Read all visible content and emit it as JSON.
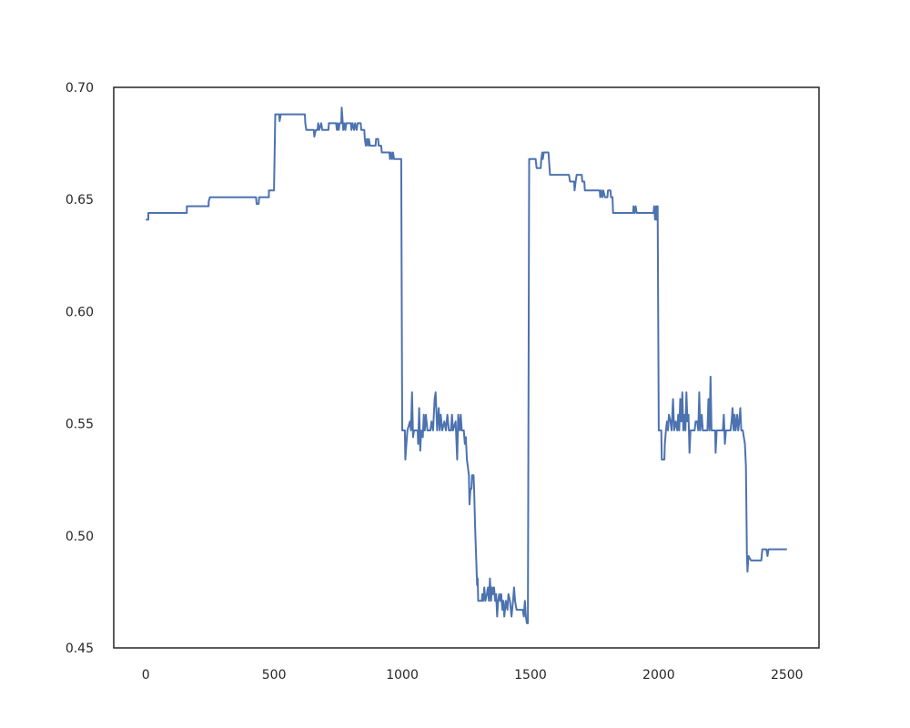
{
  "chart_data": {
    "type": "line",
    "title": "",
    "xlabel": "",
    "ylabel": "",
    "xlim": [
      -125,
      2625
    ],
    "ylim": [
      0.45,
      0.7
    ],
    "x_ticks": [
      0,
      500,
      1000,
      1500,
      2000,
      2500
    ],
    "y_ticks": [
      0.45,
      0.5,
      0.55,
      0.6,
      0.65,
      0.7
    ],
    "x_tick_labels": [
      "0",
      "500",
      "1000",
      "1500",
      "2000",
      "2500"
    ],
    "y_tick_labels": [
      "0.45",
      "0.50",
      "0.55",
      "0.60",
      "0.65",
      "0.70"
    ],
    "grid": false,
    "colors": {
      "line": "#4c72b0",
      "axes": "#262626"
    },
    "series": [
      {
        "points": [
          [
            0,
            0.641
          ],
          [
            10,
            0.641
          ],
          [
            10,
            0.644
          ],
          [
            160,
            0.644
          ],
          [
            160,
            0.647
          ],
          [
            245,
            0.647
          ],
          [
            245,
            0.649
          ],
          [
            250,
            0.651
          ],
          [
            430,
            0.651
          ],
          [
            432,
            0.648
          ],
          [
            440,
            0.648
          ],
          [
            442,
            0.651
          ],
          [
            480,
            0.651
          ],
          [
            480,
            0.654
          ],
          [
            500,
            0.654
          ],
          [
            505,
            0.688
          ],
          [
            520,
            0.688
          ],
          [
            522,
            0.685
          ],
          [
            526,
            0.688
          ],
          [
            620,
            0.688
          ],
          [
            622,
            0.684
          ],
          [
            626,
            0.681
          ],
          [
            655,
            0.681
          ],
          [
            657,
            0.678
          ],
          [
            663,
            0.681
          ],
          [
            670,
            0.681
          ],
          [
            672,
            0.684
          ],
          [
            676,
            0.681
          ],
          [
            684,
            0.684
          ],
          [
            688,
            0.681
          ],
          [
            712,
            0.681
          ],
          [
            714,
            0.684
          ],
          [
            742,
            0.684
          ],
          [
            745,
            0.681
          ],
          [
            748,
            0.684
          ],
          [
            752,
            0.681
          ],
          [
            756,
            0.684
          ],
          [
            762,
            0.684
          ],
          [
            764,
            0.691
          ],
          [
            768,
            0.684
          ],
          [
            770,
            0.681
          ],
          [
            774,
            0.684
          ],
          [
            778,
            0.681
          ],
          [
            782,
            0.684
          ],
          [
            800,
            0.684
          ],
          [
            802,
            0.681
          ],
          [
            806,
            0.684
          ],
          [
            812,
            0.681
          ],
          [
            816,
            0.684
          ],
          [
            822,
            0.681
          ],
          [
            826,
            0.684
          ],
          [
            838,
            0.684
          ],
          [
            840,
            0.681
          ],
          [
            852,
            0.681
          ],
          [
            854,
            0.677
          ],
          [
            858,
            0.674
          ],
          [
            862,
            0.677
          ],
          [
            866,
            0.674
          ],
          [
            870,
            0.677
          ],
          [
            874,
            0.674
          ],
          [
            896,
            0.674
          ],
          [
            898,
            0.677
          ],
          [
            906,
            0.677
          ],
          [
            908,
            0.674
          ],
          [
            918,
            0.674
          ],
          [
            920,
            0.671
          ],
          [
            950,
            0.671
          ],
          [
            952,
            0.668
          ],
          [
            956,
            0.671
          ],
          [
            960,
            0.668
          ],
          [
            964,
            0.671
          ],
          [
            968,
            0.668
          ],
          [
            996,
            0.668
          ],
          [
            1000,
            0.547
          ],
          [
            1010,
            0.547
          ],
          [
            1012,
            0.534
          ],
          [
            1016,
            0.541
          ],
          [
            1020,
            0.547
          ],
          [
            1030,
            0.551
          ],
          [
            1034,
            0.547
          ],
          [
            1038,
            0.564
          ],
          [
            1042,
            0.544
          ],
          [
            1046,
            0.547
          ],
          [
            1060,
            0.547
          ],
          [
            1062,
            0.541
          ],
          [
            1066,
            0.557
          ],
          [
            1070,
            0.538
          ],
          [
            1074,
            0.547
          ],
          [
            1080,
            0.544
          ],
          [
            1084,
            0.554
          ],
          [
            1088,
            0.547
          ],
          [
            1092,
            0.554
          ],
          [
            1098,
            0.547
          ],
          [
            1110,
            0.547
          ],
          [
            1114,
            0.551
          ],
          [
            1120,
            0.547
          ],
          [
            1126,
            0.561
          ],
          [
            1130,
            0.564
          ],
          [
            1136,
            0.547
          ],
          [
            1142,
            0.557
          ],
          [
            1146,
            0.547
          ],
          [
            1150,
            0.554
          ],
          [
            1156,
            0.547
          ],
          [
            1164,
            0.551
          ],
          [
            1170,
            0.547
          ],
          [
            1176,
            0.554
          ],
          [
            1182,
            0.547
          ],
          [
            1190,
            0.547
          ],
          [
            1194,
            0.554
          ],
          [
            1198,
            0.547
          ],
          [
            1208,
            0.551
          ],
          [
            1214,
            0.534
          ],
          [
            1218,
            0.554
          ],
          [
            1224,
            0.547
          ],
          [
            1228,
            0.554
          ],
          [
            1232,
            0.547
          ],
          [
            1240,
            0.547
          ],
          [
            1244,
            0.541
          ],
          [
            1248,
            0.544
          ],
          [
            1252,
            0.534
          ],
          [
            1260,
            0.527
          ],
          [
            1262,
            0.514
          ],
          [
            1266,
            0.521
          ],
          [
            1270,
            0.521
          ],
          [
            1272,
            0.527
          ],
          [
            1278,
            0.527
          ],
          [
            1280,
            0.521
          ],
          [
            1284,
            0.504
          ],
          [
            1288,
            0.491
          ],
          [
            1292,
            0.478
          ],
          [
            1294,
            0.481
          ],
          [
            1296,
            0.471
          ],
          [
            1310,
            0.471
          ],
          [
            1312,
            0.474
          ],
          [
            1316,
            0.471
          ],
          [
            1320,
            0.477
          ],
          [
            1324,
            0.471
          ],
          [
            1330,
            0.474
          ],
          [
            1334,
            0.477
          ],
          [
            1338,
            0.471
          ],
          [
            1342,
            0.481
          ],
          [
            1346,
            0.471
          ],
          [
            1350,
            0.477
          ],
          [
            1354,
            0.474
          ],
          [
            1358,
            0.477
          ],
          [
            1362,
            0.471
          ],
          [
            1366,
            0.474
          ],
          [
            1370,
            0.464
          ],
          [
            1374,
            0.471
          ],
          [
            1378,
            0.474
          ],
          [
            1382,
            0.471
          ],
          [
            1386,
            0.474
          ],
          [
            1390,
            0.467
          ],
          [
            1394,
            0.471
          ],
          [
            1398,
            0.464
          ],
          [
            1404,
            0.471
          ],
          [
            1410,
            0.467
          ],
          [
            1414,
            0.474
          ],
          [
            1420,
            0.471
          ],
          [
            1426,
            0.464
          ],
          [
            1432,
            0.471
          ],
          [
            1436,
            0.477
          ],
          [
            1440,
            0.471
          ],
          [
            1446,
            0.467
          ],
          [
            1470,
            0.467
          ],
          [
            1474,
            0.464
          ],
          [
            1478,
            0.471
          ],
          [
            1482,
            0.464
          ],
          [
            1486,
            0.461
          ],
          [
            1490,
            0.461
          ],
          [
            1495,
            0.668
          ],
          [
            1520,
            0.668
          ],
          [
            1524,
            0.664
          ],
          [
            1540,
            0.664
          ],
          [
            1542,
            0.668
          ],
          [
            1546,
            0.671
          ],
          [
            1548,
            0.668
          ],
          [
            1552,
            0.671
          ],
          [
            1570,
            0.671
          ],
          [
            1576,
            0.661
          ],
          [
            1650,
            0.661
          ],
          [
            1654,
            0.658
          ],
          [
            1670,
            0.658
          ],
          [
            1672,
            0.654
          ],
          [
            1676,
            0.658
          ],
          [
            1680,
            0.661
          ],
          [
            1700,
            0.661
          ],
          [
            1702,
            0.658
          ],
          [
            1710,
            0.658
          ],
          [
            1712,
            0.654
          ],
          [
            1770,
            0.654
          ],
          [
            1772,
            0.651
          ],
          [
            1776,
            0.654
          ],
          [
            1780,
            0.651
          ],
          [
            1784,
            0.654
          ],
          [
            1790,
            0.651
          ],
          [
            1800,
            0.651
          ],
          [
            1802,
            0.654
          ],
          [
            1812,
            0.654
          ],
          [
            1814,
            0.651
          ],
          [
            1820,
            0.651
          ],
          [
            1822,
            0.644
          ],
          [
            1900,
            0.644
          ],
          [
            1902,
            0.647
          ],
          [
            1906,
            0.644
          ],
          [
            1910,
            0.647
          ],
          [
            1914,
            0.644
          ],
          [
            1980,
            0.644
          ],
          [
            1982,
            0.647
          ],
          [
            1986,
            0.641
          ],
          [
            1990,
            0.647
          ],
          [
            1992,
            0.641
          ],
          [
            1996,
            0.647
          ],
          [
            2000,
            0.547
          ],
          [
            2010,
            0.547
          ],
          [
            2012,
            0.534
          ],
          [
            2022,
            0.534
          ],
          [
            2024,
            0.541
          ],
          [
            2028,
            0.547
          ],
          [
            2032,
            0.551
          ],
          [
            2036,
            0.547
          ],
          [
            2040,
            0.554
          ],
          [
            2046,
            0.551
          ],
          [
            2050,
            0.547
          ],
          [
            2056,
            0.561
          ],
          [
            2060,
            0.547
          ],
          [
            2066,
            0.551
          ],
          [
            2072,
            0.547
          ],
          [
            2076,
            0.554
          ],
          [
            2080,
            0.547
          ],
          [
            2084,
            0.561
          ],
          [
            2088,
            0.551
          ],
          [
            2092,
            0.564
          ],
          [
            2096,
            0.547
          ],
          [
            2100,
            0.554
          ],
          [
            2104,
            0.547
          ],
          [
            2108,
            0.564
          ],
          [
            2112,
            0.551
          ],
          [
            2116,
            0.554
          ],
          [
            2120,
            0.537
          ],
          [
            2124,
            0.547
          ],
          [
            2140,
            0.547
          ],
          [
            2144,
            0.551
          ],
          [
            2150,
            0.551
          ],
          [
            2154,
            0.547
          ],
          [
            2158,
            0.564
          ],
          [
            2162,
            0.547
          ],
          [
            2168,
            0.554
          ],
          [
            2172,
            0.547
          ],
          [
            2190,
            0.547
          ],
          [
            2194,
            0.561
          ],
          [
            2198,
            0.547
          ],
          [
            2202,
            0.571
          ],
          [
            2206,
            0.547
          ],
          [
            2220,
            0.547
          ],
          [
            2222,
            0.537
          ],
          [
            2226,
            0.547
          ],
          [
            2250,
            0.547
          ],
          [
            2254,
            0.554
          ],
          [
            2258,
            0.541
          ],
          [
            2262,
            0.547
          ],
          [
            2280,
            0.547
          ],
          [
            2284,
            0.551
          ],
          [
            2288,
            0.557
          ],
          [
            2292,
            0.547
          ],
          [
            2296,
            0.554
          ],
          [
            2300,
            0.547
          ],
          [
            2306,
            0.554
          ],
          [
            2310,
            0.547
          ],
          [
            2314,
            0.551
          ],
          [
            2318,
            0.557
          ],
          [
            2322,
            0.547
          ],
          [
            2328,
            0.547
          ],
          [
            2332,
            0.544
          ],
          [
            2336,
            0.541
          ],
          [
            2340,
            0.531
          ],
          [
            2344,
            0.491
          ],
          [
            2346,
            0.484
          ],
          [
            2350,
            0.491
          ],
          [
            2360,
            0.489
          ],
          [
            2400,
            0.489
          ],
          [
            2404,
            0.494
          ],
          [
            2420,
            0.494
          ],
          [
            2424,
            0.491
          ],
          [
            2428,
            0.494
          ],
          [
            2500,
            0.494
          ]
        ]
      }
    ]
  }
}
